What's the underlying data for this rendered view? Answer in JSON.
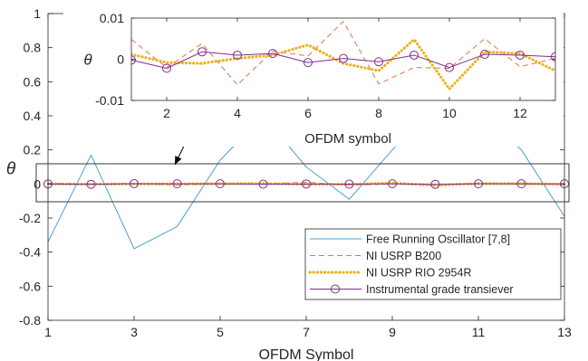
{
  "chart_data": [
    {
      "type": "line",
      "xlabel": "OFDM Symbol",
      "ylabel": "θ",
      "xlim": [
        1,
        13
      ],
      "ylim": [
        -0.8,
        1
      ],
      "xticks": [
        1,
        3,
        5,
        7,
        9,
        11,
        13
      ],
      "yticks": [
        -0.8,
        -0.6,
        -0.4,
        -0.2,
        0,
        0.2,
        0.4,
        0.6,
        0.8,
        1
      ],
      "ytick_labels": [
        "-0.8",
        "-0.6",
        "-0.4",
        "-0.2",
        "0",
        "0.2",
        "0.4",
        "0.6",
        "0.8",
        "1"
      ],
      "grid": false,
      "legend_position": "bottom-right",
      "x": [
        1,
        2,
        3,
        4,
        5,
        6,
        7,
        8,
        9,
        10,
        11,
        12,
        13
      ],
      "series": [
        {
          "name": "Free Running Oscillator [7,8]",
          "color": "#4a9fd4",
          "style": "solid",
          "values": [
            -0.34,
            0.17,
            -0.38,
            -0.25,
            0.14,
            0.4,
            0.1,
            -0.09,
            0.2,
            0.46,
            0.42,
            0.2,
            -0.19
          ]
        },
        {
          "name": "NI USRP B200",
          "color": "#d9784a",
          "style": "dashed",
          "values": [
            0.005,
            -0.002,
            0.004,
            -0.007,
            0.002,
            0.001,
            0.01,
            -0.007,
            -0.001,
            -0.005,
            0.005,
            -0.002,
            -0.001
          ]
        },
        {
          "name": "NI USRP RIO 2954R",
          "color": "#edb120",
          "style": "dotted",
          "values": [
            0.001,
            -0.001,
            -0.001,
            0.0,
            0.001,
            0.003,
            -0.002,
            -0.003,
            0.005,
            -0.008,
            0.002,
            0.002,
            -0.003
          ]
        },
        {
          "name": "Instrumental grade transiever",
          "color": "#7e2f8e",
          "style": "solid-circle",
          "values": [
            0.0,
            -0.002,
            0.002,
            0.001,
            0.001,
            -0.001,
            0.0,
            -0.001,
            0.001,
            -0.002,
            0.001,
            0.001,
            0.001
          ]
        }
      ]
    },
    {
      "type": "line",
      "xlabel": "OFDM symbol",
      "ylabel": "θ",
      "xlim": [
        1,
        13
      ],
      "ylim": [
        -0.01,
        0.01
      ],
      "xticks": [
        2,
        4,
        6,
        8,
        10,
        12
      ],
      "yticks": [
        -0.01,
        0,
        0.01
      ],
      "ytick_labels": [
        "-0.01",
        "0",
        "0.01"
      ],
      "grid": false,
      "x": [
        1,
        2,
        3,
        4,
        5,
        6,
        7,
        8,
        9,
        10,
        11,
        12,
        13
      ],
      "series": [
        {
          "color": "#d9784a",
          "style": "dashed",
          "values": [
            0.0048,
            -0.002,
            0.0038,
            -0.0062,
            0.002,
            0.0008,
            0.0092,
            -0.006,
            -0.002,
            -0.0022,
            0.005,
            -0.0018,
            0.0002
          ]
        },
        {
          "color": "#edb120",
          "style": "dotted",
          "values": [
            0.0012,
            -0.0008,
            -0.001,
            0.0002,
            0.001,
            0.0035,
            -0.001,
            -0.0028,
            0.0048,
            -0.0072,
            0.0018,
            0.0014,
            -0.0028
          ]
        },
        {
          "color": "#7e2f8e",
          "style": "solid-circle",
          "values": [
            -0.0002,
            -0.0022,
            0.0018,
            0.001,
            0.0014,
            -0.0008,
            0.0002,
            -0.0006,
            0.001,
            -0.002,
            0.0012,
            0.001,
            0.0006
          ]
        }
      ]
    }
  ]
}
